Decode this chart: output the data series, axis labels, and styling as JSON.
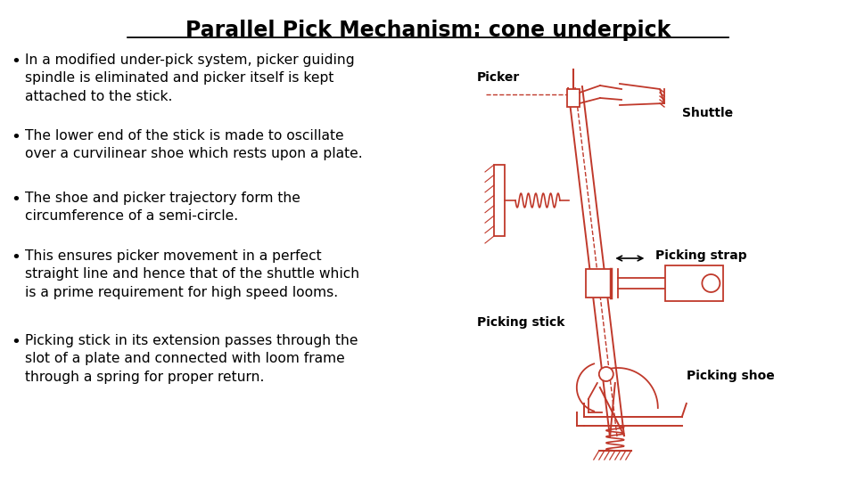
{
  "title": "Parallel Pick Mechanism: cone underpick",
  "title_fontsize": 17,
  "title_fontweight": "bold",
  "background_color": "#ffffff",
  "text_color": "#000000",
  "diagram_color": "#c0392b",
  "bullet_points": [
    "In a modified under-pick system, picker guiding\nspindle is eliminated and picker itself is kept\nattached to the stick.",
    "The lower end of the stick is made to oscillate\nover a curvilinear shoe which rests upon a plate.",
    "The shoe and picker trajectory form the\ncircumference of a semi-circle.",
    "This ensures picker movement in a perfect\nstraight line and hence that of the shuttle which\nis a prime requirement for high speed looms.",
    "Picking stick in its extension passes through the\nslot of a plate and connected with loom frame\nthrough a spring for proper return."
  ],
  "bullet_fontsize": 11.2,
  "label_fontsize": 10,
  "label_fontweight": "bold"
}
